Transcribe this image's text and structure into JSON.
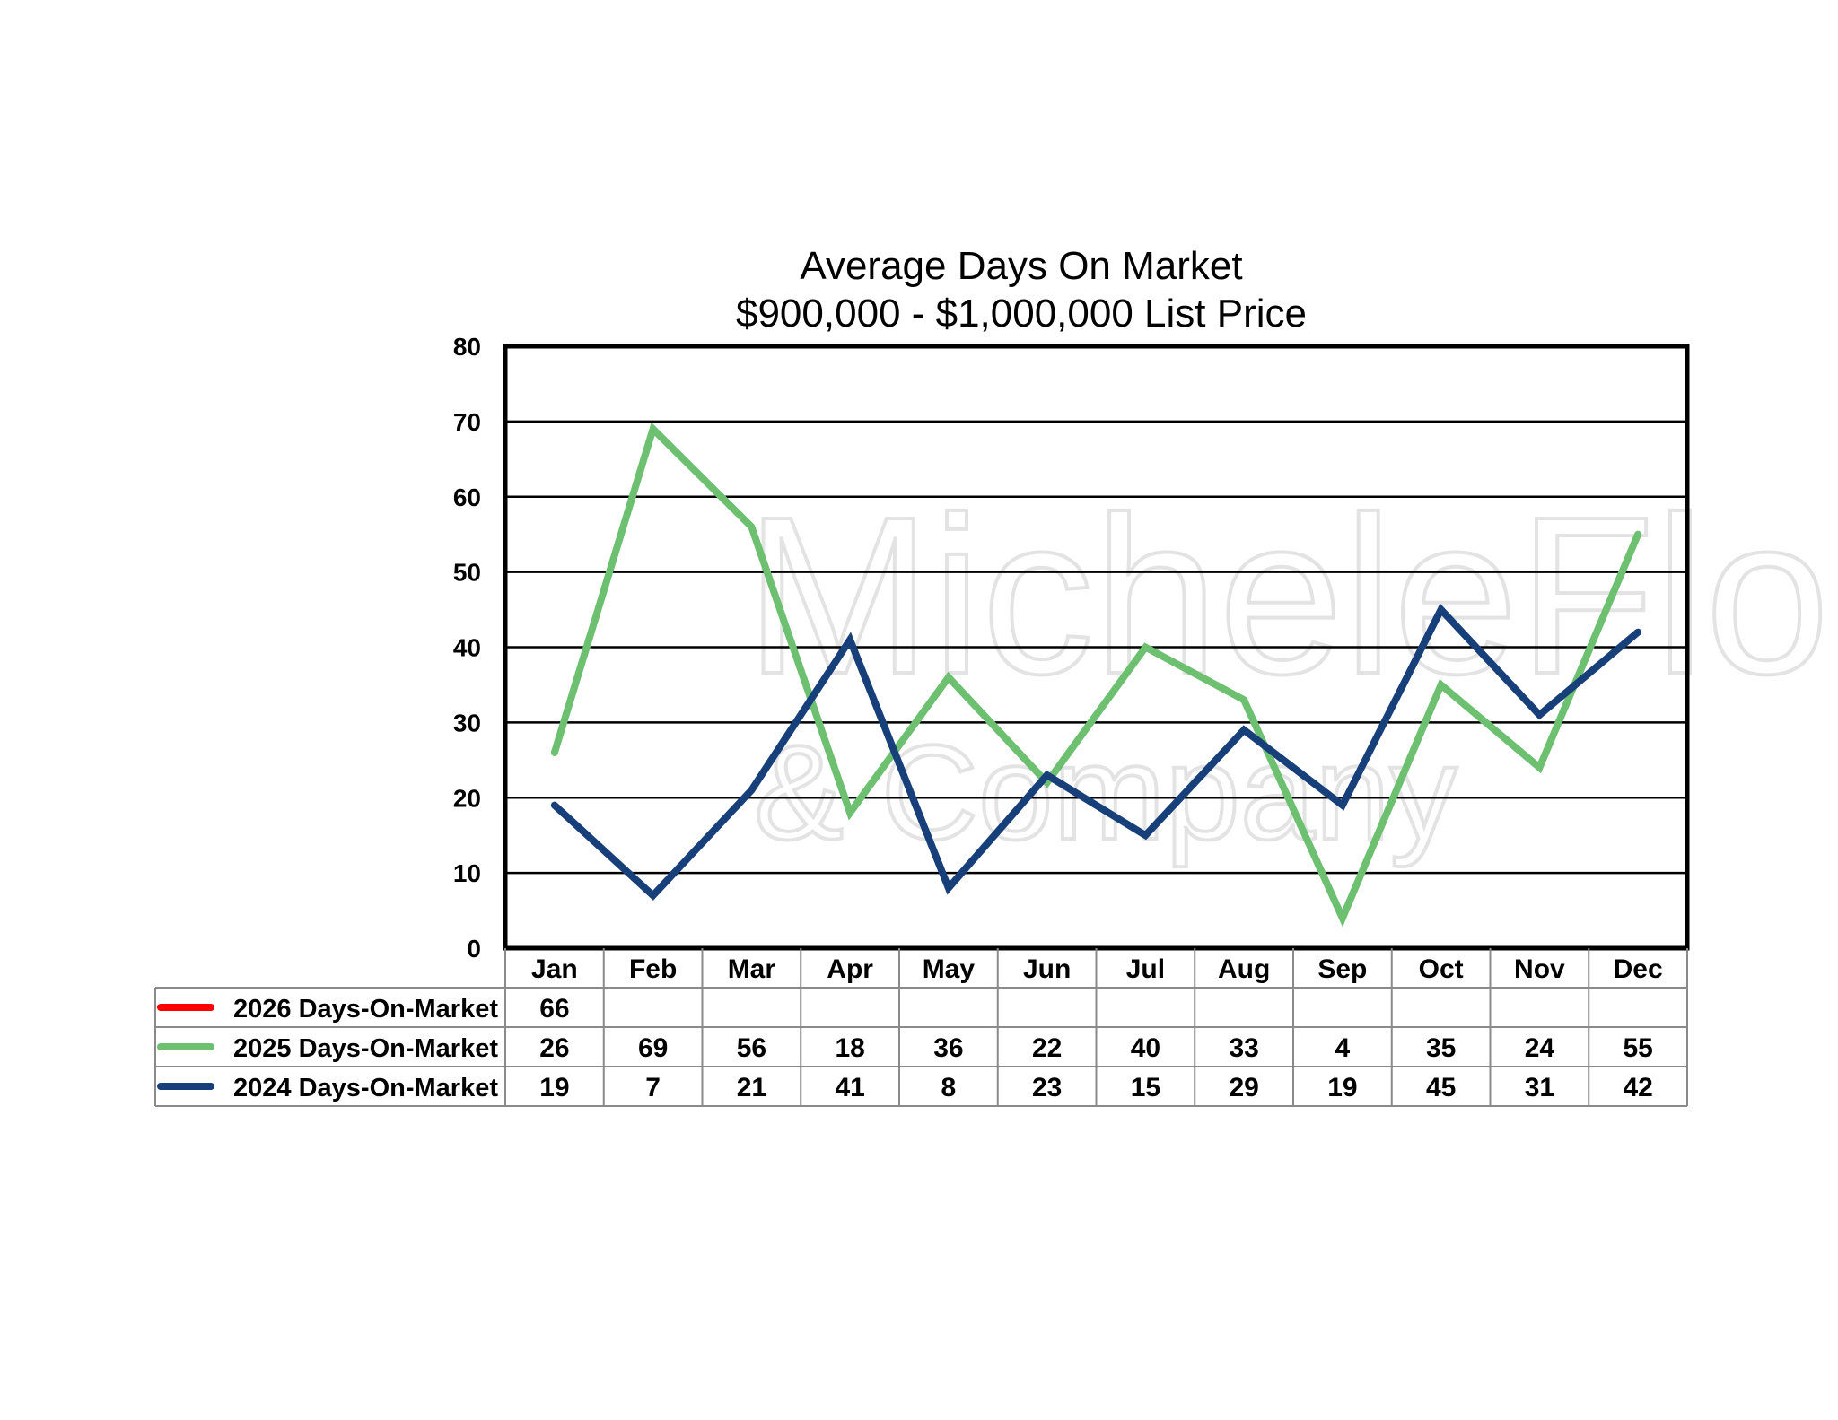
{
  "chart_data": {
    "type": "line",
    "title": "Average Days On Market",
    "subtitle": "$900,000 - $1,000,000 List Price",
    "categories": [
      "Jan",
      "Feb",
      "Mar",
      "Apr",
      "May",
      "Jun",
      "Jul",
      "Aug",
      "Sep",
      "Oct",
      "Nov",
      "Dec"
    ],
    "ylim": [
      0,
      80
    ],
    "yticks": [
      0,
      10,
      20,
      30,
      40,
      50,
      60,
      70,
      80
    ],
    "grid": true,
    "legend": "data-table-below",
    "series": [
      {
        "name": "2026 Days-On-Market",
        "color": "#ff0000",
        "values": [
          66,
          null,
          null,
          null,
          null,
          null,
          null,
          null,
          null,
          null,
          null,
          null
        ]
      },
      {
        "name": "2025 Days-On-Market",
        "color": "#6cc070",
        "values": [
          26,
          69,
          56,
          18,
          36,
          22,
          40,
          33,
          4,
          35,
          24,
          55
        ]
      },
      {
        "name": "2024 Days-On-Market",
        "color": "#17407a",
        "values": [
          19,
          7,
          21,
          41,
          8,
          23,
          15,
          29,
          19,
          45,
          31,
          42
        ]
      }
    ],
    "watermark": {
      "line1": "MicheleFlory",
      "line2": "& Company"
    }
  }
}
